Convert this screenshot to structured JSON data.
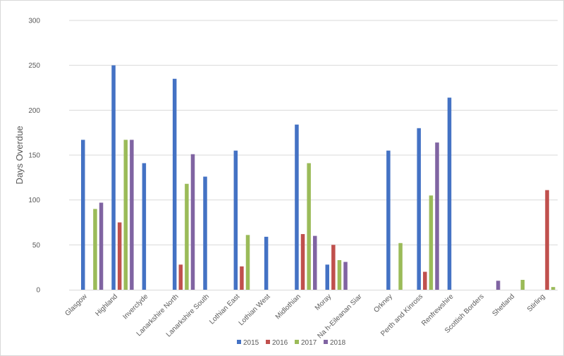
{
  "chart_data": {
    "type": "bar",
    "ylabel": "Days Overdue",
    "xlabel": "",
    "ylim": [
      0,
      300
    ],
    "yticks": [
      0,
      50,
      100,
      150,
      200,
      250,
      300
    ],
    "grid": true,
    "legend_position": "bottom",
    "categories": [
      "Glasgow",
      "Highland",
      "Inverclyde",
      "Lanarkshire North",
      "Lanarkshire South",
      "Lothian East",
      "Lothian West",
      "Midlothian",
      "Moray",
      "Na h-Eileanan Siar",
      "Orkney",
      "Perth and Kinross",
      "Renfrewshire",
      "Scottish Borders",
      "Shetland",
      "Stirling"
    ],
    "series": [
      {
        "name": "2015",
        "color": "#4472c4",
        "values": [
          167,
          250,
          141,
          235,
          126,
          155,
          59,
          184,
          28,
          null,
          155,
          180,
          214,
          null,
          null,
          null
        ]
      },
      {
        "name": "2016",
        "color": "#c0504d",
        "values": [
          null,
          75,
          null,
          28,
          null,
          26,
          null,
          62,
          50,
          null,
          null,
          20,
          null,
          null,
          null,
          111
        ]
      },
      {
        "name": "2017",
        "color": "#9bbb59",
        "values": [
          90,
          167,
          null,
          118,
          null,
          61,
          null,
          141,
          33,
          null,
          52,
          105,
          null,
          null,
          11,
          3
        ]
      },
      {
        "name": "2018",
        "color": "#8064a2",
        "values": [
          97,
          167,
          null,
          151,
          null,
          null,
          null,
          60,
          31,
          null,
          null,
          164,
          null,
          10,
          null,
          null
        ]
      }
    ]
  }
}
